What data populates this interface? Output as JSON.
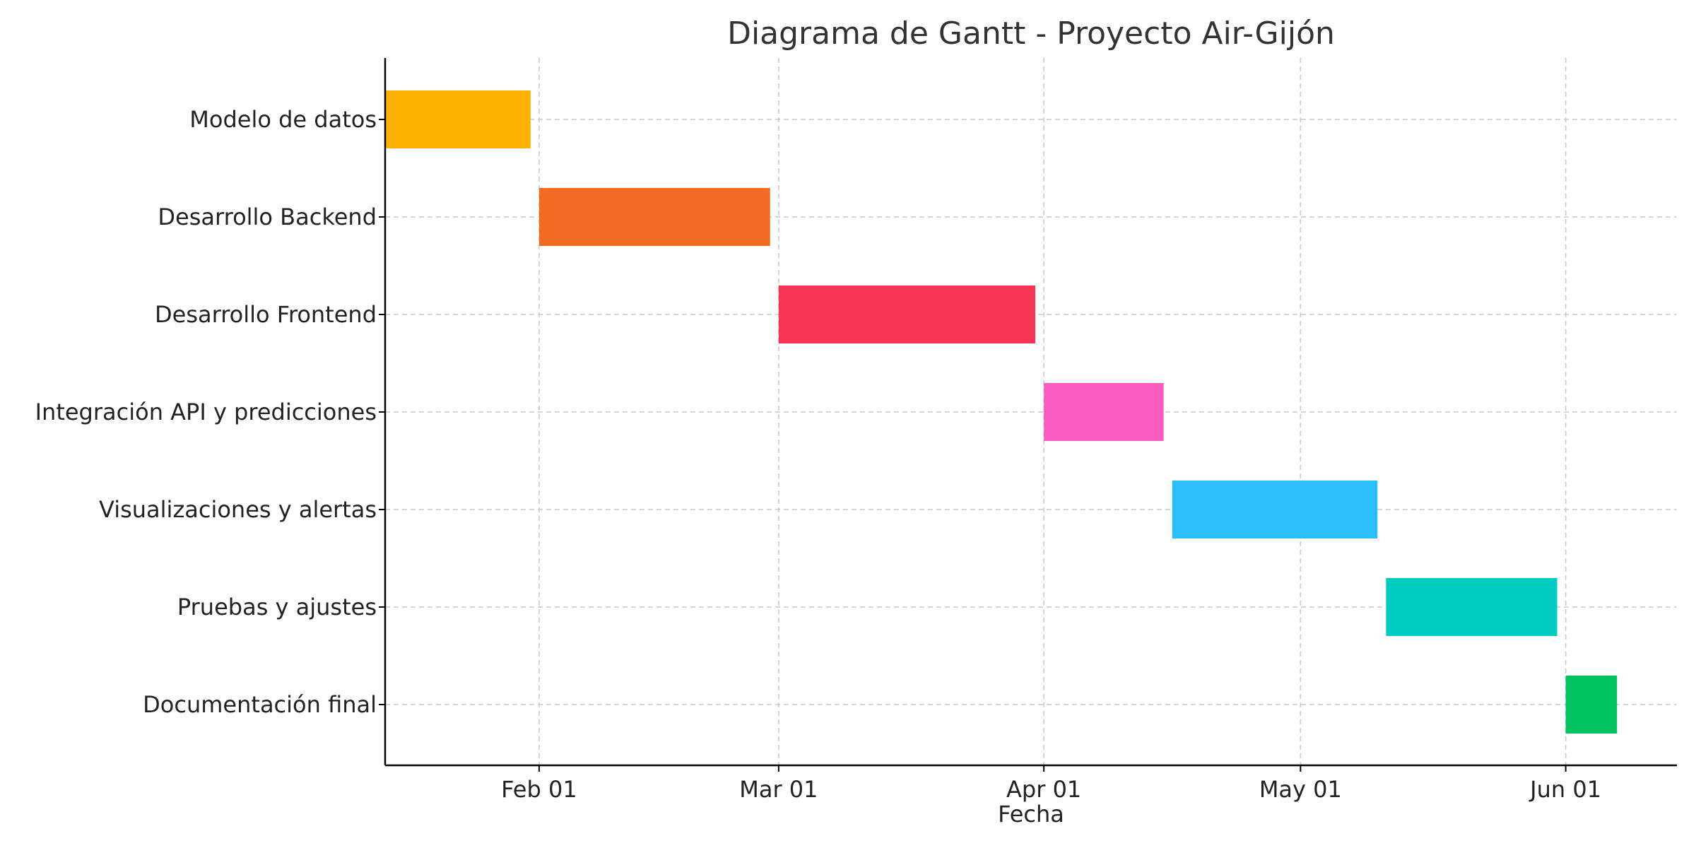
{
  "chart_data": {
    "type": "bar",
    "orientation": "horizontal",
    "title": "Diagrama de Gantt - Proyecto Air-Gijón",
    "xlabel": "Fecha",
    "ylabel": "",
    "x_axis_type": "date",
    "xlim": [
      "2025-01-14",
      "2025-06-14"
    ],
    "x_ticks": [
      {
        "date": "2025-02-01",
        "label": "Feb 01"
      },
      {
        "date": "2025-03-01",
        "label": "Mar 01"
      },
      {
        "date": "2025-04-01",
        "label": "Apr 01"
      },
      {
        "date": "2025-05-01",
        "label": "May 01"
      },
      {
        "date": "2025-06-01",
        "label": "Jun 01"
      }
    ],
    "grid": true,
    "tasks": [
      {
        "name": "Modelo de datos",
        "start": "2025-01-14",
        "end": "2025-01-31",
        "color": "#FFB000"
      },
      {
        "name": "Desarrollo Backend",
        "start": "2025-02-01",
        "end": "2025-02-28",
        "color": "#F26B22"
      },
      {
        "name": "Desarrollo Frontend",
        "start": "2025-03-01",
        "end": "2025-03-31",
        "color": "#F73356"
      },
      {
        "name": "Integración API y predicciones",
        "start": "2025-04-01",
        "end": "2025-04-15",
        "color": "#F95BC0"
      },
      {
        "name": "Visualizaciones y alertas",
        "start": "2025-04-16",
        "end": "2025-05-10",
        "color": "#2BBEFB"
      },
      {
        "name": "Pruebas y ajustes",
        "start": "2025-05-11",
        "end": "2025-05-31",
        "color": "#00CCC1"
      },
      {
        "name": "Documentación final",
        "start": "2025-06-01",
        "end": "2025-06-07",
        "color": "#00C25E"
      }
    ]
  }
}
